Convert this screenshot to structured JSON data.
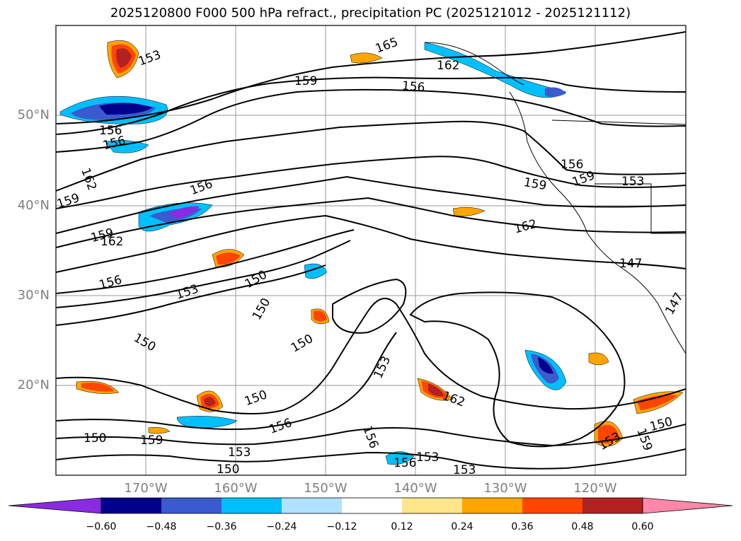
{
  "title": "2025120800 F000 500 hPa refract., precipitation PC (2025121012 - 2025121112)",
  "lat_labels": [
    "50°N",
    "40°N",
    "30°N",
    "20°N"
  ],
  "lon_labels": [
    "170°W",
    "160°W",
    "150°W",
    "140°W",
    "130°W",
    "120°W"
  ],
  "colorbar": {
    "ticks": [
      "−0.60",
      "−0.48",
      "−0.36",
      "−0.24",
      "−0.12",
      "0.12",
      "0.24",
      "0.36",
      "0.48",
      "0.60"
    ],
    "colors": [
      "#8a2be2",
      "#00008b",
      "#3a5bcf",
      "#00bfff",
      "#b0e2ff",
      "#ffffff",
      "#ffe68c",
      "#ffa500",
      "#ff4500",
      "#b22222",
      "#ff88aa"
    ]
  },
  "contour_labels": [
    "153",
    "165",
    "162",
    "159",
    "156",
    "156",
    "156",
    "162",
    "159",
    "156",
    "156",
    "159",
    "159",
    "153",
    "162",
    "159",
    "162",
    "156",
    "153",
    "150",
    "147",
    "150",
    "150",
    "150",
    "147",
    "153",
    "150",
    "156",
    "162",
    "150",
    "159",
    "156",
    "153",
    "153",
    "156",
    "153",
    "153",
    "159",
    "150",
    "150"
  ]
}
